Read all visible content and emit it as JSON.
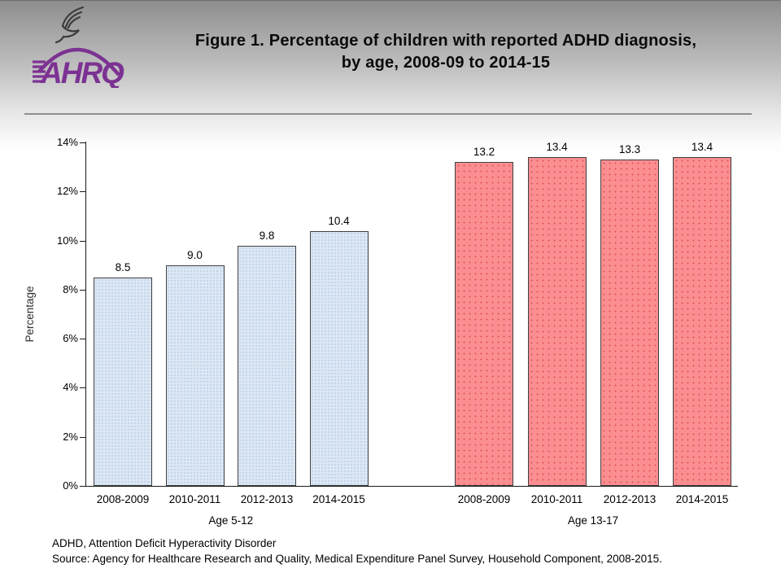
{
  "header": {
    "title_line1": "Figure 1. Percentage of children with reported ADHD diagnosis,",
    "title_line2": "by age, 2008-09 to 2014-15",
    "logo": {
      "wordmark": "AHRQ",
      "brand_color": "#7c3292",
      "eagle_icon": "hhs-eagle-icon"
    }
  },
  "chart_data": {
    "type": "bar",
    "title": "Figure 1. Percentage of children with reported ADHD diagnosis, by age, 2008-09 to 2014-15",
    "xlabel": "",
    "ylabel": "Percentage",
    "ylim": [
      0,
      14
    ],
    "ytick_interval": 2,
    "ytick_labels": [
      "0%",
      "2%",
      "4%",
      "6%",
      "8%",
      "10%",
      "12%",
      "14%"
    ],
    "grid": false,
    "legend_position": "none",
    "groups": [
      {
        "label": "Age 5-12",
        "categories": [
          "2008-2009",
          "2010-2011",
          "2012-2013",
          "2014-2015"
        ],
        "values": [
          8.5,
          9.0,
          9.8,
          10.4
        ],
        "value_labels": [
          "8.5",
          "9.0",
          "9.8",
          "10.4"
        ],
        "bar_fill": "#dce7f3",
        "bar_dot_color": "#b9cfe9",
        "bar_border": "#3f3f3f"
      },
      {
        "label": "Age 13-17",
        "categories": [
          "2008-2009",
          "2010-2011",
          "2012-2013",
          "2014-2015"
        ],
        "values": [
          13.2,
          13.4,
          13.3,
          13.4
        ],
        "value_labels": [
          "13.2",
          "13.4",
          "13.3",
          "13.4"
        ],
        "bar_fill": "#fb8e91",
        "bar_dot_color": "#dd5257",
        "bar_border": "#3f3f3f"
      }
    ]
  },
  "footer": {
    "note1": "ADHD, Attention Deficit Hyperactivity Disorder",
    "note2": "Source: Agency for Healthcare Research and Quality, Medical Expenditure Panel Survey, Household Component, 2008-2015."
  }
}
